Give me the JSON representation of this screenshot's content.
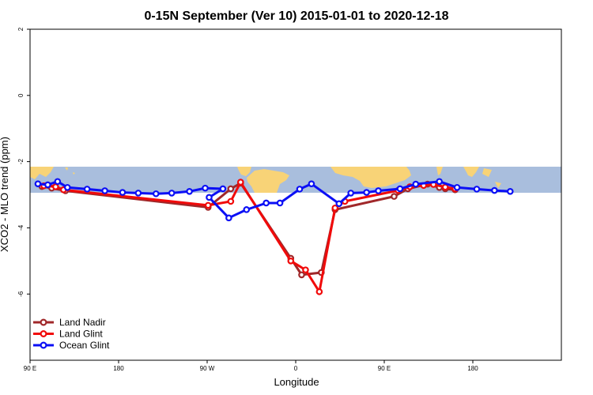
{
  "chart_data": {
    "type": "line",
    "title": "0-15N September (Ver 10)   2015-01-01 to 2020-12-18",
    "xlabel": "Longitude",
    "ylabel": "XCO2 - MLO trend (ppm)",
    "xlim": [
      -90,
      180
    ],
    "ylim": [
      -8,
      2
    ],
    "x_ticks": [
      {
        "value": -90,
        "label": "90 E"
      },
      {
        "value": -45,
        "label": "180"
      },
      {
        "value": 0,
        "label": "90 W"
      },
      {
        "value": 45,
        "label": "0"
      },
      {
        "value": 90,
        "label": "90 E"
      },
      {
        "value": 135,
        "label": "180"
      }
    ],
    "y_ticks": [
      {
        "value": 2,
        "label": "2"
      },
      {
        "value": 0,
        "label": "0"
      },
      {
        "value": -2,
        "label": "-2"
      },
      {
        "value": -4,
        "label": "-4"
      },
      {
        "value": -6,
        "label": "-6"
      }
    ],
    "map_band": {
      "y_range": [
        -2.88,
        -2.08
      ],
      "ocean_color": "#a9bedd",
      "land_color": "#f8d377"
    },
    "legend_position": "bottom-left",
    "series": [
      {
        "name": "Land Nadir",
        "color": "#a0282a",
        "points": [
          [
            -84,
            -2.75
          ],
          [
            -79,
            -2.8
          ],
          [
            -72,
            -2.88
          ],
          [
            0.5,
            -3.38
          ],
          [
            12,
            -2.82
          ],
          [
            17,
            -2.65
          ],
          [
            42.5,
            -4.92
          ],
          [
            48,
            -5.42
          ],
          [
            58,
            -5.35
          ],
          [
            65,
            -3.45
          ],
          [
            95,
            -3.05
          ],
          [
            102,
            -2.82
          ],
          [
            112,
            -2.68
          ],
          [
            118,
            -2.78
          ],
          [
            121,
            -2.82
          ],
          [
            126,
            -2.85
          ]
        ]
      },
      {
        "name": "Land Glint",
        "color": "#f10a0a",
        "points": [
          [
            -83,
            -2.73
          ],
          [
            -77,
            -2.76
          ],
          [
            -73,
            -2.85
          ],
          [
            0.5,
            -3.32
          ],
          [
            12,
            -3.2
          ],
          [
            17,
            -2.62
          ],
          [
            42.5,
            -5.0
          ],
          [
            50,
            -5.27
          ],
          [
            57,
            -5.93
          ],
          [
            65,
            -3.4
          ],
          [
            70,
            -3.2
          ],
          [
            97,
            -2.87
          ],
          [
            103,
            -2.76
          ],
          [
            110,
            -2.72
          ],
          [
            115,
            -2.69
          ],
          [
            121,
            -2.77
          ],
          [
            126,
            -2.82
          ]
        ]
      },
      {
        "name": "Ocean Glint",
        "color": "#0b0ff5",
        "points": [
          [
            -86,
            -2.67
          ],
          [
            -81,
            -2.7
          ],
          [
            -76,
            -2.6
          ],
          [
            -71,
            -2.78
          ],
          [
            -61,
            -2.83
          ],
          [
            -52,
            -2.88
          ],
          [
            -43,
            -2.93
          ],
          [
            -35,
            -2.95
          ],
          [
            -26,
            -2.97
          ],
          [
            -18,
            -2.95
          ],
          [
            -9,
            -2.9
          ],
          [
            -1,
            -2.8
          ],
          [
            8,
            -2.82
          ],
          [
            1,
            -3.08
          ],
          [
            11,
            -3.7
          ],
          [
            20,
            -3.45
          ],
          [
            30,
            -3.25
          ],
          [
            37,
            -3.25
          ],
          [
            47,
            -2.83
          ],
          [
            53,
            -2.67
          ],
          [
            67,
            -3.27
          ],
          [
            73,
            -2.95
          ],
          [
            81,
            -2.93
          ],
          [
            87,
            -2.88
          ],
          [
            98,
            -2.82
          ],
          [
            106,
            -2.68
          ],
          [
            118,
            -2.6
          ],
          [
            127,
            -2.78
          ],
          [
            137,
            -2.83
          ],
          [
            146,
            -2.87
          ],
          [
            154,
            -2.9
          ]
        ]
      }
    ]
  }
}
